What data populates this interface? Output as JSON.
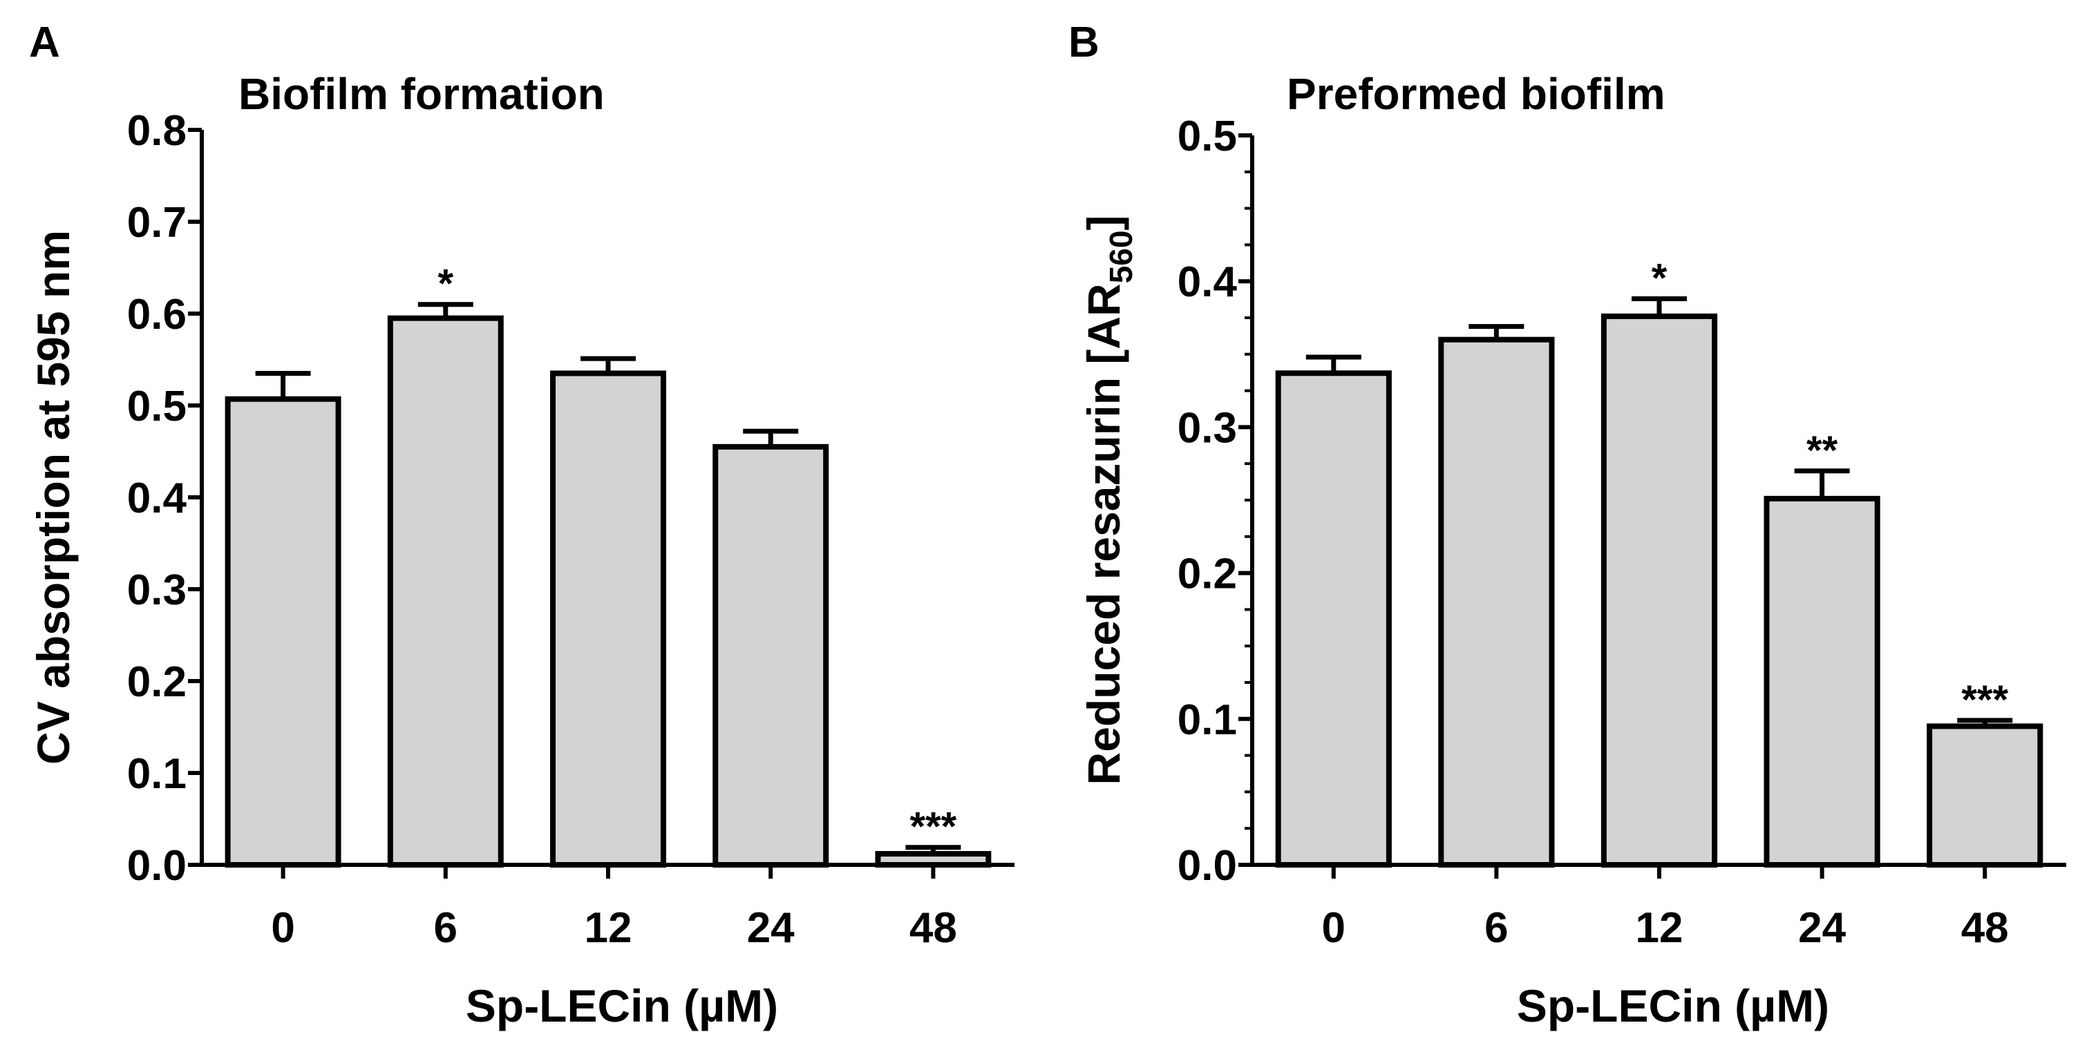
{
  "chart_data": [
    {
      "type": "bar",
      "panel": "A",
      "title": "Biofilm formation",
      "xlabel": "Sp-LECin (µM)",
      "ylabel": "CV absorption at 595 nm",
      "ylim": [
        0,
        0.8
      ],
      "yticks": [
        "0.0",
        "0.1",
        "0.2",
        "0.3",
        "0.4",
        "0.5",
        "0.6",
        "0.7",
        "0.8"
      ],
      "categories": [
        "0",
        "6",
        "12",
        "24",
        "48"
      ],
      "values": [
        0.507,
        0.595,
        0.535,
        0.455,
        0.012
      ],
      "errors": [
        0.028,
        0.015,
        0.016,
        0.017,
        0.007
      ],
      "significance": [
        "",
        "*",
        "",
        "",
        "***"
      ],
      "bar_color": "#d3d3d3"
    },
    {
      "type": "bar",
      "panel": "B",
      "title": "Preformed biofilm",
      "xlabel": "Sp-LECin (µM)",
      "ylabel": "Reduced resazurin [AR",
      "ylabel_sub": "560",
      "ylabel_end": "]",
      "ylim": [
        0,
        0.5
      ],
      "yticks": [
        "0.0",
        "0.1",
        "0.2",
        "0.3",
        "0.4",
        "0.5"
      ],
      "categories": [
        "0",
        "6",
        "12",
        "24",
        "48"
      ],
      "values": [
        0.337,
        0.36,
        0.376,
        0.251,
        0.095
      ],
      "errors": [
        0.011,
        0.009,
        0.012,
        0.019,
        0.004
      ],
      "significance": [
        "",
        "",
        "*",
        "**",
        "***"
      ],
      "bar_color": "#d3d3d3"
    }
  ]
}
